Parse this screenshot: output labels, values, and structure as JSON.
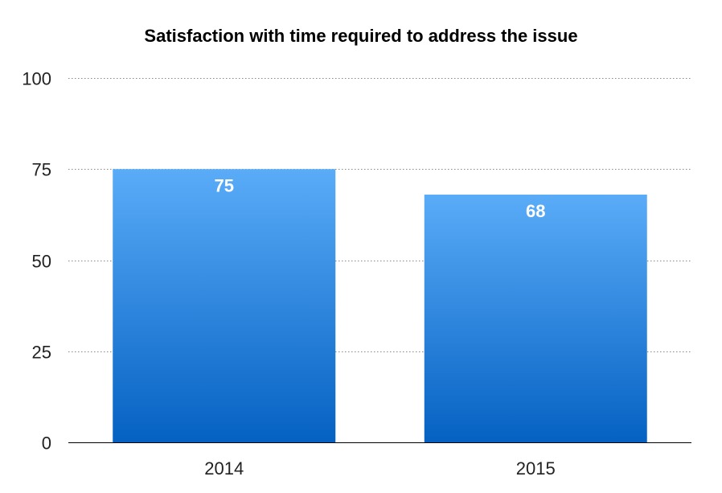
{
  "chart_data": {
    "type": "bar",
    "title": "Satisfaction with time required to address the issue",
    "categories": [
      "2014",
      "2015"
    ],
    "values": [
      75,
      68
    ],
    "data_labels": [
      "75",
      "68"
    ],
    "xlabel": "",
    "ylabel": "",
    "ylim": [
      0,
      100
    ],
    "yticks": [
      0,
      25,
      50,
      75,
      100
    ],
    "ytick_labels": [
      "0",
      "25",
      "50",
      "75",
      "100"
    ],
    "grid": true,
    "grid_style": "dotted",
    "legend": "none"
  },
  "colors": {
    "bar_top": "#5aacf8",
    "bar_bottom": "#0561c2",
    "grid": "#888888",
    "axis": "#000000"
  }
}
